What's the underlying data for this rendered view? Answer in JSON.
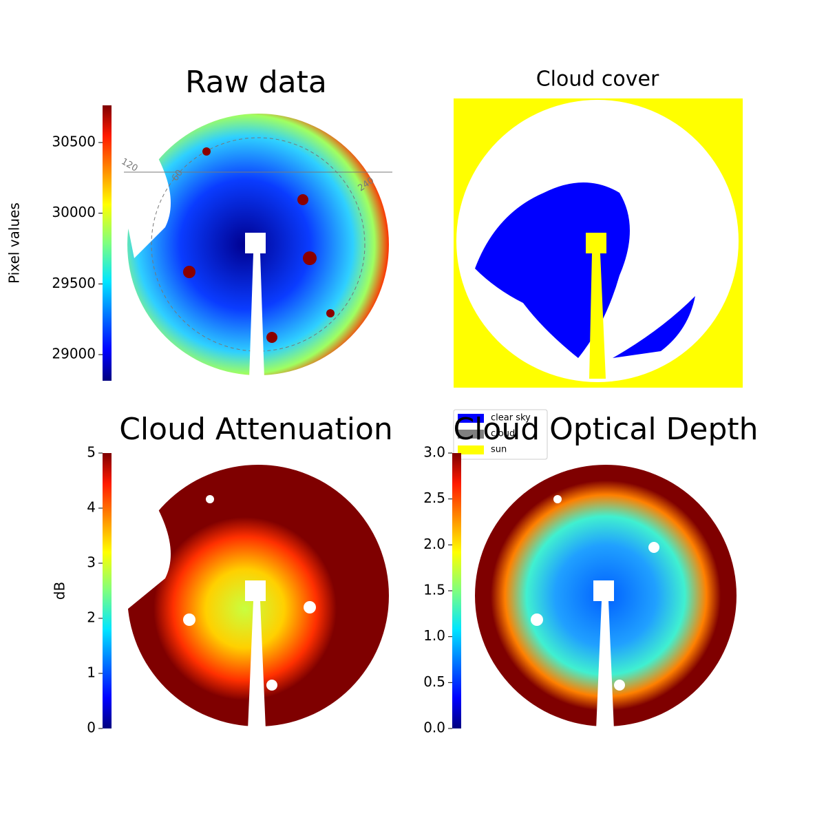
{
  "chart_data": [
    {
      "type": "heatmap",
      "title": "Raw data",
      "colorbar_label": "Pixel values",
      "colormap": "jet",
      "clim": [
        28815,
        30763
      ],
      "cticks": [
        29000,
        29500,
        30000,
        30500
      ],
      "annotations": [
        "120",
        "60",
        "240"
      ]
    },
    {
      "type": "mask",
      "title": "Cloud cover",
      "legend": [
        {
          "name": "clear sky",
          "color": "#0000ff"
        },
        {
          "name": "cloud",
          "color": "#808080"
        },
        {
          "name": "sun",
          "color": "#ffff00"
        }
      ]
    },
    {
      "type": "heatmap",
      "title": "Cloud Attenuation",
      "colorbar_label": "dB",
      "colormap": "jet",
      "clim": [
        0,
        5
      ],
      "cticks": [
        0,
        1,
        2,
        3,
        4,
        5
      ]
    },
    {
      "type": "heatmap",
      "title": "Cloud Optical Depth",
      "colormap": "jet",
      "clim": [
        0,
        3
      ],
      "cticks": [
        {
          "value": 0,
          "label": "0.0"
        },
        0.5,
        {
          "value": 1,
          "label": "1.0"
        },
        1.5,
        {
          "value": 2,
          "label": "2.0"
        },
        2.5,
        {
          "value": 3,
          "label": "3.0"
        }
      ]
    }
  ]
}
